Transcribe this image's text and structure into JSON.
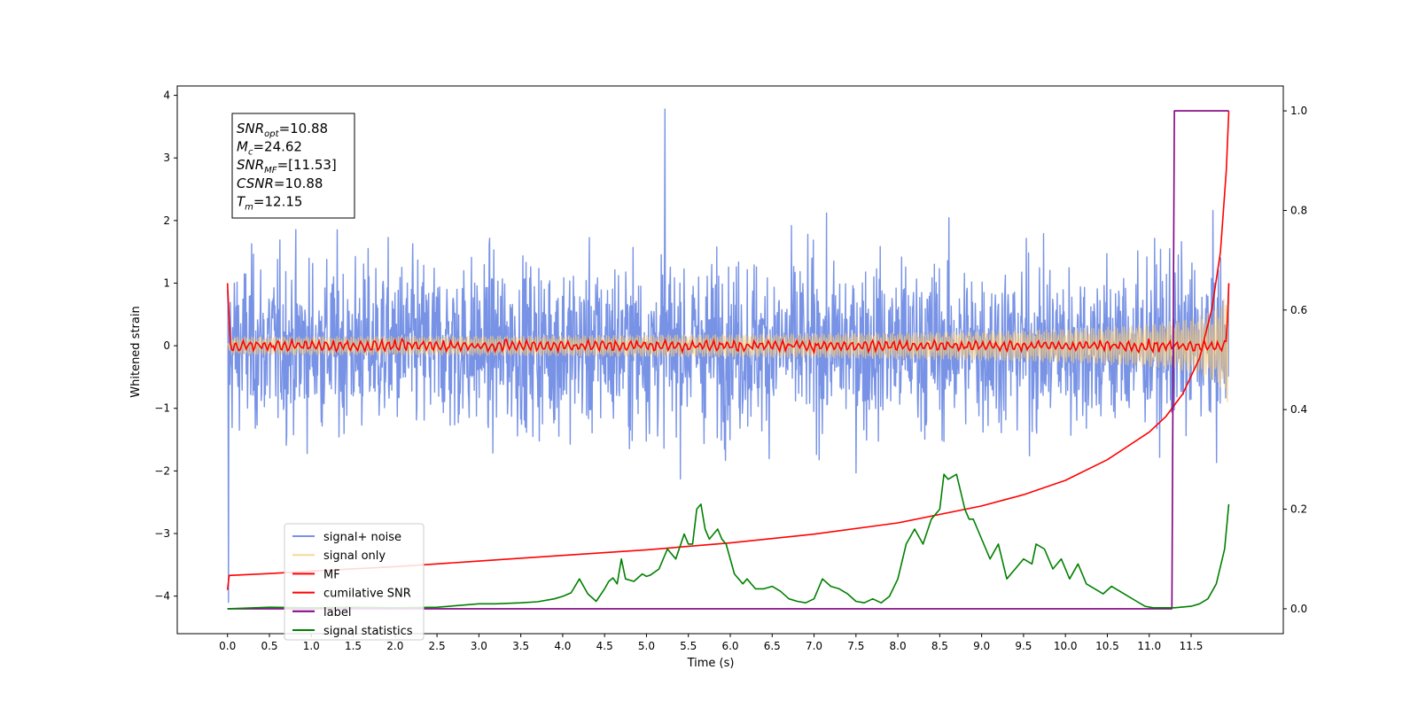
{
  "chart_data": {
    "type": "line",
    "xlabel": "Time (s)",
    "ylabel": "Whitened strain",
    "xlim": [
      -0.6,
      12.6
    ],
    "ylim": [
      -4.6,
      4.15
    ],
    "y2lim": [
      -0.05,
      1.05
    ],
    "xticks": [
      0.0,
      0.5,
      1.0,
      1.5,
      2.0,
      2.5,
      3.0,
      3.5,
      4.0,
      4.5,
      5.0,
      5.5,
      6.0,
      6.5,
      7.0,
      7.5,
      8.0,
      8.5,
      9.0,
      9.5,
      10.0,
      10.5,
      11.0,
      11.5
    ],
    "xtick_labels": [
      "0.0",
      "0.5",
      "1.0",
      "1.5",
      "2.0",
      "2.5",
      "3.0",
      "3.5",
      "4.0",
      "4.5",
      "5.0",
      "5.5",
      "6.0",
      "6.5",
      "7.0",
      "7.5",
      "8.0",
      "8.5",
      "9.0",
      "9.5",
      "10.0",
      "10.5",
      "11.0",
      "11.5"
    ],
    "yticks": [
      -4,
      -3,
      -2,
      -1,
      0,
      1,
      2,
      3,
      4
    ],
    "ytick_labels": [
      "−4",
      "−3",
      "−2",
      "−1",
      "0",
      "1",
      "2",
      "3",
      "4"
    ],
    "y2ticks": [
      0.0,
      0.2,
      0.4,
      0.6,
      0.8,
      1.0
    ],
    "y2tick_labels": [
      "0.0",
      "0.2",
      "0.4",
      "0.6",
      "0.8",
      "1.0"
    ],
    "grid": false,
    "legend_position": "lower-left",
    "annotation": {
      "lines": [
        {
          "base": "SNR",
          "sub": "opt",
          "value": "=10.88"
        },
        {
          "base": "M",
          "sub": "c",
          "value": "=24.62"
        },
        {
          "base": "SNR",
          "sub": "MF",
          "value": "=[11.53]"
        },
        {
          "base": "CSNR",
          "sub": "",
          "value": "=10.88"
        },
        {
          "base": "T",
          "sub": "m",
          "value": "=12.15"
        }
      ]
    },
    "series": [
      {
        "name": "signal+ noise",
        "color": "#7893e6",
        "axis": "left",
        "kind": "noise",
        "x_range": [
          0,
          11.95
        ],
        "spread": 1.0,
        "peak": 3.78
      },
      {
        "name": "signal only",
        "color": "#f5c97a",
        "axis": "left",
        "kind": "chirp",
        "x_range": [
          0,
          11.95
        ],
        "end_amplitude": 1.0
      },
      {
        "name": "MF",
        "color": "#ff0000",
        "axis": "left",
        "kind": "oscillation",
        "x_range": [
          0,
          11.95
        ],
        "start": 1.0,
        "end": 1.0
      },
      {
        "name": "cumilative SNR",
        "color": "#ff0000",
        "axis": "left",
        "x": [
          0,
          0.02,
          0.5,
          1,
          2,
          3,
          4,
          5,
          6,
          7,
          8,
          9,
          9.5,
          10,
          10.5,
          11,
          11.2,
          11.4,
          11.6,
          11.75,
          11.85,
          11.92,
          11.95
        ],
        "y": [
          -3.9,
          -3.67,
          -3.64,
          -3.6,
          -3.53,
          -3.44,
          -3.35,
          -3.26,
          -3.15,
          -3.01,
          -2.83,
          -2.56,
          -2.38,
          -2.15,
          -1.82,
          -1.38,
          -1.13,
          -0.77,
          -0.2,
          0.6,
          1.5,
          2.8,
          3.75
        ]
      },
      {
        "name": "label",
        "color": "#800080",
        "axis": "right",
        "x": [
          0,
          11.27,
          11.3,
          11.95
        ],
        "y": [
          0,
          0,
          1,
          1
        ]
      },
      {
        "name": "signal statistics",
        "color": "#008000",
        "axis": "right",
        "x": [
          0,
          0.5,
          1,
          1.5,
          2,
          2.5,
          3,
          3.2,
          3.5,
          3.7,
          3.9,
          4.0,
          4.1,
          4.2,
          4.3,
          4.4,
          4.5,
          4.55,
          4.6,
          4.65,
          4.7,
          4.75,
          4.85,
          4.95,
          5.0,
          5.05,
          5.15,
          5.25,
          5.35,
          5.45,
          5.5,
          5.55,
          5.6,
          5.65,
          5.7,
          5.75,
          5.8,
          5.85,
          5.9,
          5.95,
          6.05,
          6.15,
          6.2,
          6.3,
          6.4,
          6.5,
          6.6,
          6.7,
          6.8,
          6.9,
          7.0,
          7.1,
          7.2,
          7.3,
          7.4,
          7.5,
          7.6,
          7.7,
          7.8,
          7.9,
          8.0,
          8.1,
          8.2,
          8.3,
          8.4,
          8.5,
          8.55,
          8.6,
          8.7,
          8.8,
          8.85,
          8.9,
          8.95,
          9.05,
          9.1,
          9.2,
          9.3,
          9.4,
          9.5,
          9.6,
          9.65,
          9.75,
          9.85,
          9.95,
          10.05,
          10.15,
          10.25,
          10.35,
          10.45,
          10.55,
          10.7,
          10.85,
          10.95,
          11.05,
          11.3,
          11.5,
          11.6,
          11.7,
          11.8,
          11.9,
          11.95
        ],
        "y": [
          0.0,
          0.003,
          0.002,
          0.003,
          0.002,
          0.003,
          0.01,
          0.01,
          0.012,
          0.014,
          0.02,
          0.025,
          0.032,
          0.06,
          0.03,
          0.015,
          0.04,
          0.055,
          0.062,
          0.05,
          0.1,
          0.06,
          0.055,
          0.07,
          0.065,
          0.068,
          0.08,
          0.12,
          0.1,
          0.15,
          0.13,
          0.13,
          0.2,
          0.21,
          0.16,
          0.14,
          0.15,
          0.16,
          0.14,
          0.13,
          0.07,
          0.05,
          0.06,
          0.04,
          0.04,
          0.045,
          0.035,
          0.02,
          0.015,
          0.012,
          0.02,
          0.06,
          0.045,
          0.04,
          0.03,
          0.015,
          0.012,
          0.02,
          0.012,
          0.025,
          0.06,
          0.13,
          0.16,
          0.13,
          0.18,
          0.2,
          0.27,
          0.26,
          0.27,
          0.2,
          0.18,
          0.18,
          0.16,
          0.12,
          0.1,
          0.13,
          0.06,
          0.08,
          0.1,
          0.09,
          0.13,
          0.12,
          0.08,
          0.1,
          0.06,
          0.09,
          0.05,
          0.04,
          0.03,
          0.045,
          0.03,
          0.015,
          0.005,
          0.002,
          0.002,
          0.005,
          0.01,
          0.02,
          0.05,
          0.12,
          0.21
        ]
      }
    ]
  }
}
